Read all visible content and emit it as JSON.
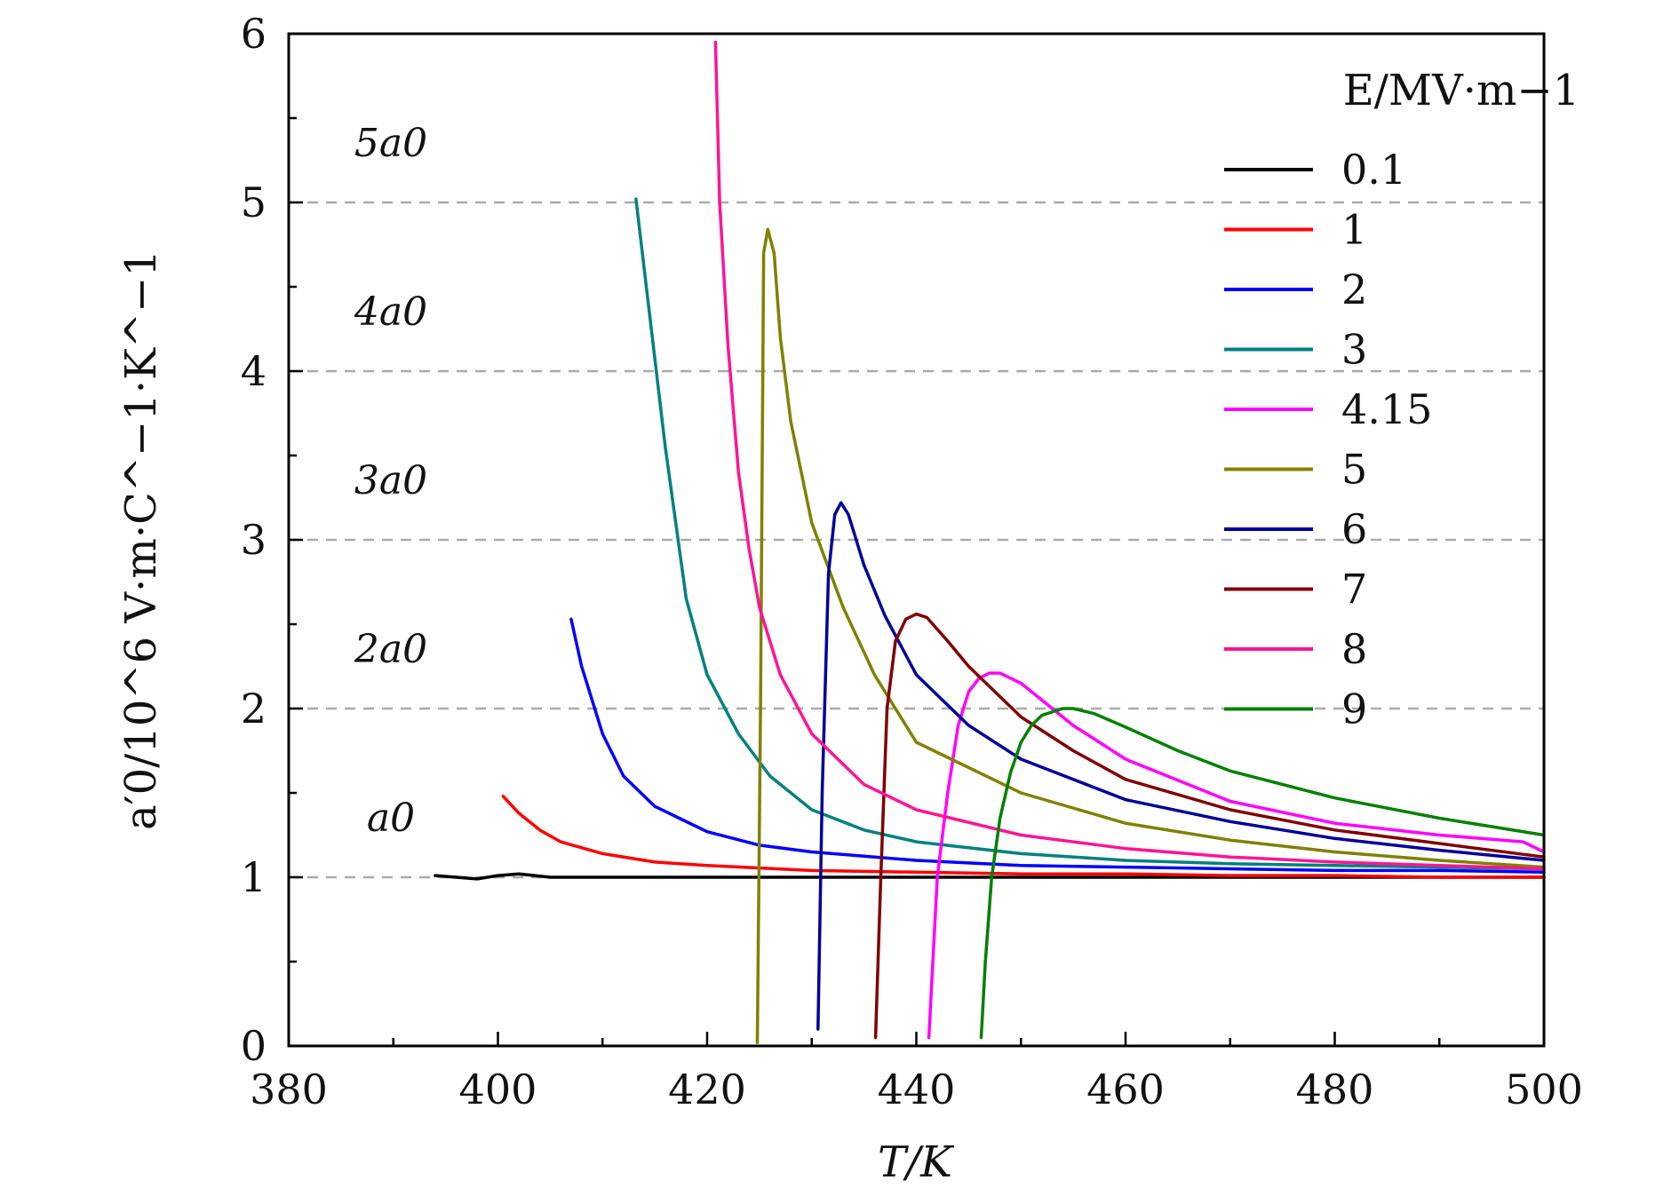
{
  "chart_data": {
    "type": "line",
    "xlabel": "T/K",
    "ylabel": "a′0/10^6 V·m·C^−1·K^−1",
    "xlim": [
      380,
      500
    ],
    "ylim": [
      0,
      6
    ],
    "xticks": [
      "380",
      "400",
      "420",
      "440",
      "460",
      "480",
      "500"
    ],
    "yticks": [
      "0",
      "1",
      "2",
      "3",
      "4",
      "5",
      "6"
    ],
    "grid": "dashed horizontal at y = 1, 2, 3, 4, 5",
    "legend": {
      "title": "E/MV·m−1",
      "placement": "top-right"
    },
    "annotations": [
      {
        "text": "a0",
        "y": 1
      },
      {
        "text": "2a0",
        "y": 2
      },
      {
        "text": "3a0",
        "y": 3
      },
      {
        "text": "4a0",
        "y": 4
      },
      {
        "text": "5a0",
        "y": 5
      }
    ],
    "series": [
      {
        "name": "0.1",
        "color": "#000000",
        "x": [
          394,
          396,
          398,
          400,
          402,
          405,
          410,
          420,
          430,
          440,
          450,
          460,
          470,
          480,
          490,
          500
        ],
        "y": [
          1.01,
          1.0,
          0.99,
          1.01,
          1.02,
          1.0,
          1.0,
          1.0,
          1.0,
          1.0,
          1.0,
          1.0,
          1.0,
          1.0,
          1.0,
          1.0
        ]
      },
      {
        "name": "1",
        "color": "#ff0000",
        "x": [
          400.5,
          402,
          404,
          406,
          410,
          415,
          420,
          430,
          440,
          450,
          460,
          470,
          480,
          490,
          500
        ],
        "y": [
          1.48,
          1.38,
          1.28,
          1.21,
          1.14,
          1.09,
          1.07,
          1.04,
          1.03,
          1.02,
          1.02,
          1.01,
          1.01,
          1.0,
          1.0
        ]
      },
      {
        "name": "2",
        "color": "#0000ff",
        "x": [
          407,
          408,
          410,
          412,
          415,
          420,
          425,
          430,
          440,
          450,
          460,
          470,
          480,
          490,
          500
        ],
        "y": [
          2.53,
          2.25,
          1.85,
          1.6,
          1.42,
          1.27,
          1.19,
          1.15,
          1.1,
          1.07,
          1.06,
          1.05,
          1.04,
          1.04,
          1.03
        ]
      },
      {
        "name": "3",
        "color": "#008080",
        "x": [
          413.2,
          414,
          416,
          418,
          420,
          423,
          426,
          430,
          435,
          440,
          450,
          460,
          470,
          480,
          490,
          500
        ],
        "y": [
          5.02,
          4.6,
          3.55,
          2.65,
          2.2,
          1.85,
          1.6,
          1.4,
          1.28,
          1.21,
          1.14,
          1.1,
          1.08,
          1.07,
          1.06,
          1.05
        ]
      },
      {
        "name": "4.15",
        "color": "#ff00ff",
        "x": [
          441.2,
          442,
          443,
          444,
          445,
          446,
          447,
          448,
          450,
          455,
          460,
          470,
          480,
          490,
          498,
          500
        ],
        "y": [
          0.05,
          1.0,
          1.5,
          1.9,
          2.1,
          2.18,
          2.21,
          2.21,
          2.15,
          1.9,
          1.7,
          1.45,
          1.32,
          1.25,
          1.21,
          1.15
        ]
      },
      {
        "name": "5",
        "color": "#808000",
        "x": [
          424.8,
          425.1,
          425.4,
          425.8,
          426.4,
          427,
          428,
          430,
          433,
          436,
          440,
          450,
          460,
          470,
          480,
          490,
          500
        ],
        "y": [
          0.02,
          2.0,
          4.7,
          4.84,
          4.7,
          4.2,
          3.7,
          3.1,
          2.6,
          2.2,
          1.8,
          1.5,
          1.32,
          1.22,
          1.15,
          1.1,
          1.06
        ]
      },
      {
        "name": "6",
        "color": "#000099",
        "x": [
          430.6,
          431,
          431.6,
          432.2,
          432.8,
          433.5,
          435,
          437,
          440,
          445,
          450,
          460,
          470,
          480,
          490,
          500
        ],
        "y": [
          0.1,
          1.5,
          2.8,
          3.15,
          3.22,
          3.15,
          2.85,
          2.55,
          2.2,
          1.9,
          1.7,
          1.46,
          1.33,
          1.23,
          1.16,
          1.1
        ]
      },
      {
        "name": "7",
        "color": "#800000",
        "x": [
          436.1,
          436.6,
          437.2,
          438,
          439,
          440,
          441,
          443,
          445,
          450,
          455,
          460,
          470,
          480,
          490,
          500
        ],
        "y": [
          0.05,
          1.0,
          2.0,
          2.4,
          2.53,
          2.56,
          2.54,
          2.4,
          2.25,
          1.95,
          1.75,
          1.58,
          1.4,
          1.28,
          1.2,
          1.12
        ]
      },
      {
        "name": "8",
        "color": "#ff1493",
        "x": [
          420.8,
          421.2,
          422,
          423,
          424,
          425,
          427,
          430,
          435,
          440,
          450,
          460,
          470,
          480,
          490,
          500
        ],
        "y": [
          5.95,
          5.0,
          4.15,
          3.4,
          2.95,
          2.6,
          2.2,
          1.85,
          1.55,
          1.4,
          1.25,
          1.17,
          1.12,
          1.09,
          1.07,
          1.05
        ]
      },
      {
        "name": "9",
        "color": "#008000",
        "x": [
          446.2,
          446.6,
          447.2,
          448,
          449,
          450,
          451,
          452,
          454,
          455,
          457,
          460,
          465,
          470,
          480,
          490,
          500
        ],
        "y": [
          0.05,
          0.5,
          1.0,
          1.35,
          1.62,
          1.8,
          1.9,
          1.96,
          2.0,
          2.0,
          1.97,
          1.89,
          1.75,
          1.63,
          1.47,
          1.35,
          1.25
        ]
      }
    ]
  }
}
